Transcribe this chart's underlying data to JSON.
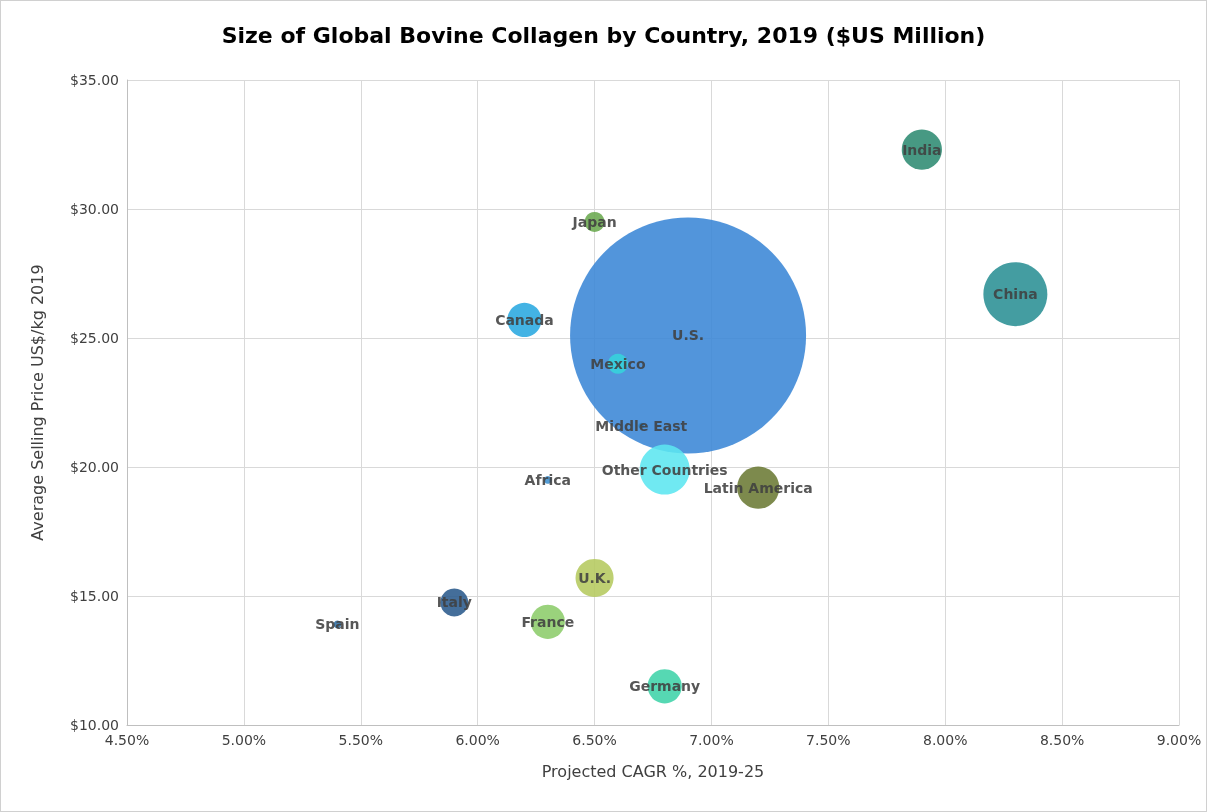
{
  "chart_data": {
    "type": "bubble",
    "title": "Size of Global Bovine Collagen by Country, 2019 ($US Million)",
    "xlabel": "Projected CAGR %, 2019-25",
    "ylabel": "Average Selling Price US$/kg 2019",
    "series": [
      {
        "name": "India",
        "color": "#2e8b72",
        "x": [
          7.9
        ],
        "values": [
          32.3
        ],
        "sizes": [
          0.029
        ]
      },
      {
        "name": "Japan",
        "color": "#6aa84f",
        "x": [
          6.5
        ],
        "values": [
          29.5
        ],
        "sizes": [
          0.0072
        ]
      },
      {
        "name": "China",
        "color": "#2a8f94",
        "x": [
          8.3
        ],
        "values": [
          26.7
        ],
        "sizes": [
          0.0735
        ]
      },
      {
        "name": "Canada",
        "color": "#29a9e0",
        "x": [
          6.2
        ],
        "values": [
          25.7
        ],
        "sizes": [
          0.021
        ]
      },
      {
        "name": "U.S.",
        "color": "#3a86d6",
        "x": [
          6.9
        ],
        "values": [
          25.1
        ],
        "sizes": [
          1
        ]
      },
      {
        "name": "Mexico",
        "color": "#36d4dc",
        "x": [
          6.6
        ],
        "values": [
          24.0
        ],
        "sizes": [
          0.0072
        ]
      },
      {
        "name": "Middle East",
        "color": "#2f7fc0",
        "x": [
          6.7
        ],
        "values": [
          21.6
        ],
        "sizes": [
          0.0006
        ]
      },
      {
        "name": "Other Countries",
        "color": "#5ce6f0",
        "x": [
          6.8
        ],
        "values": [
          19.9
        ],
        "sizes": [
          0.045
        ]
      },
      {
        "name": "Africa",
        "color": "#3b8fd0",
        "x": [
          6.3
        ],
        "values": [
          19.5
        ],
        "sizes": [
          0.0011
        ]
      },
      {
        "name": "Latin America",
        "color": "#6b7a34",
        "x": [
          7.2
        ],
        "values": [
          19.2
        ],
        "sizes": [
          0.032
        ]
      },
      {
        "name": "U.K.",
        "color": "#b5c95f",
        "x": [
          6.5
        ],
        "values": [
          15.7
        ],
        "sizes": [
          0.026
        ]
      },
      {
        "name": "Italy",
        "color": "#2a5a8c",
        "x": [
          5.9
        ],
        "values": [
          14.75
        ],
        "sizes": [
          0.014
        ]
      },
      {
        "name": "Spain",
        "color": "#2f6fa6",
        "x": [
          5.4
        ],
        "values": [
          13.9
        ],
        "sizes": [
          0.0011
        ]
      },
      {
        "name": "France",
        "color": "#8ccc6a",
        "x": [
          6.3
        ],
        "values": [
          14.0
        ],
        "sizes": [
          0.021
        ]
      },
      {
        "name": "Germany",
        "color": "#3fd3a8",
        "x": [
          6.8
        ],
        "values": [
          11.5
        ],
        "sizes": [
          0.021
        ]
      }
    ],
    "xlim": [
      4.5,
      9.0
    ],
    "xticks": [
      {
        "value": 4.5,
        "label": "4.50%"
      },
      {
        "value": 5.0,
        "label": "5.00%"
      },
      {
        "value": 5.5,
        "label": "5.50%"
      },
      {
        "value": 6.0,
        "label": "6.00%"
      },
      {
        "value": 6.5,
        "label": "6.50%"
      },
      {
        "value": 7.0,
        "label": "7.00%"
      },
      {
        "value": 7.5,
        "label": "7.50%"
      },
      {
        "value": 8.0,
        "label": "8.00%"
      },
      {
        "value": 8.5,
        "label": "8.50%"
      },
      {
        "value": 9.0,
        "label": "9.00%"
      }
    ],
    "ylim": [
      10,
      35
    ],
    "yticks": [
      {
        "value": 10,
        "label": "$10.00"
      },
      {
        "value": 15,
        "label": "$15.00"
      },
      {
        "value": 20,
        "label": "$20.00"
      },
      {
        "value": 25,
        "label": "$25.00"
      },
      {
        "value": 30,
        "label": "$30.00"
      },
      {
        "value": 35,
        "label": "$35.00"
      }
    ],
    "grid": true,
    "legend": false
  }
}
